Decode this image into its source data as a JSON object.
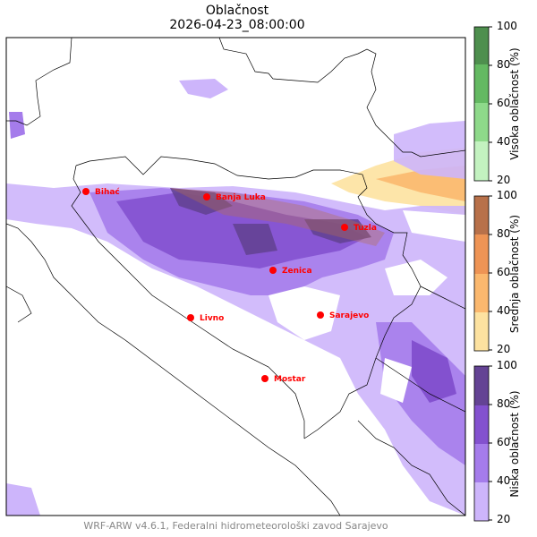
{
  "title": "Oblačnost",
  "subtitle": "2026-04-23_08:00:00",
  "footer": "WRF-ARW v4.6.1, Federalni hidrometeorološki zavod Sarajevo",
  "cities": [
    {
      "name": "Bihać"
    },
    {
      "name": "Banja Luka"
    },
    {
      "name": "Tuzla"
    },
    {
      "name": "Zenica"
    },
    {
      "name": "Sarajevo"
    },
    {
      "name": "Livno"
    },
    {
      "name": "Mostar"
    }
  ],
  "city_color": "#ff0000",
  "colorbars": [
    {
      "label": "Visoka oblačnost (%)",
      "ticks": [
        "100",
        "80",
        "60",
        "40",
        "20"
      ],
      "colors": [
        "#c3f2c0",
        "#8ed98a",
        "#64b962",
        "#4e8f4e"
      ]
    },
    {
      "label": "Srednja oblačnost (%)",
      "ticks": [
        "100",
        "80",
        "60",
        "40",
        "20"
      ],
      "colors": [
        "#fde2a0",
        "#fbb86e",
        "#ee9455",
        "#b8714a"
      ]
    },
    {
      "label": "Niska oblačnost (%)",
      "ticks": [
        "100",
        "80",
        "60",
        "40",
        "20"
      ],
      "colors": [
        "#cdb5fb",
        "#a57ceb",
        "#8351cf",
        "#644394"
      ]
    }
  ]
}
